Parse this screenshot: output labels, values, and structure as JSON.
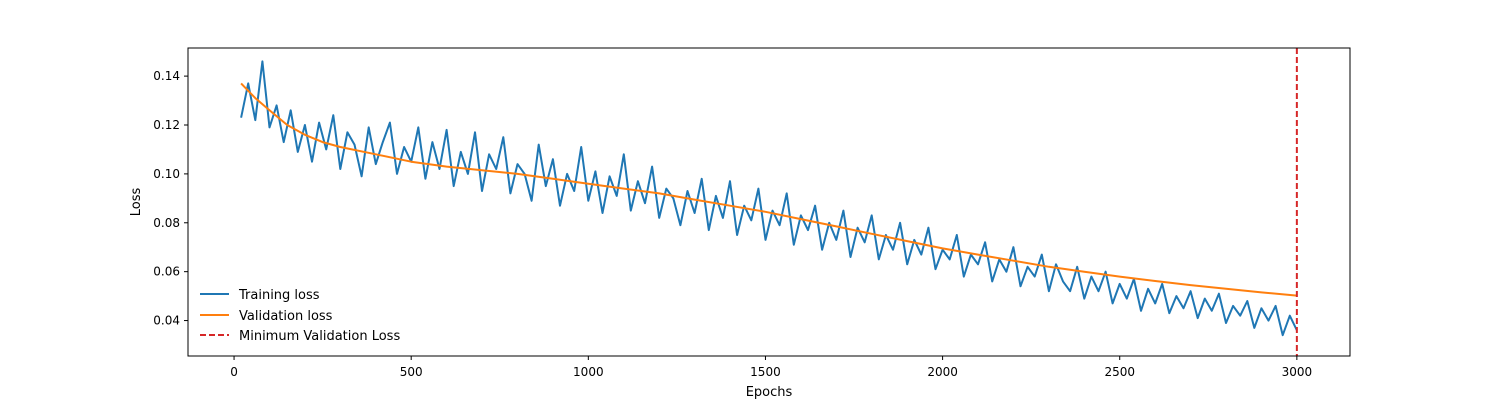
{
  "chart_data": {
    "type": "line",
    "title": "",
    "xlabel": "Epochs",
    "ylabel": "Loss",
    "xlim": [
      -130,
      3150
    ],
    "ylim": [
      0.0255,
      0.1515
    ],
    "x_ticks": [
      0,
      500,
      1000,
      1500,
      2000,
      2500,
      3000
    ],
    "y_ticks": [
      0.04,
      0.06,
      0.08,
      0.1,
      0.12,
      0.14
    ],
    "grid": false,
    "legend_position": "lower-left",
    "series": [
      {
        "name": "Training loss",
        "color": "#1f77b4",
        "style": "solid",
        "x": [
          20,
          40,
          60,
          80,
          100,
          120,
          140,
          160,
          180,
          200,
          220,
          240,
          260,
          280,
          300,
          320,
          340,
          360,
          380,
          400,
          420,
          440,
          460,
          480,
          500,
          520,
          540,
          560,
          580,
          600,
          620,
          640,
          660,
          680,
          700,
          720,
          740,
          760,
          780,
          800,
          820,
          840,
          860,
          880,
          900,
          920,
          940,
          960,
          980,
          1000,
          1020,
          1040,
          1060,
          1080,
          1100,
          1120,
          1140,
          1160,
          1180,
          1200,
          1220,
          1240,
          1260,
          1280,
          1300,
          1320,
          1340,
          1360,
          1380,
          1400,
          1420,
          1440,
          1460,
          1480,
          1500,
          1520,
          1540,
          1560,
          1580,
          1600,
          1620,
          1640,
          1660,
          1680,
          1700,
          1720,
          1740,
          1760,
          1780,
          1800,
          1820,
          1840,
          1860,
          1880,
          1900,
          1920,
          1940,
          1960,
          1980,
          2000,
          2020,
          2040,
          2060,
          2080,
          2100,
          2120,
          2140,
          2160,
          2180,
          2200,
          2220,
          2240,
          2260,
          2280,
          2300,
          2320,
          2340,
          2360,
          2380,
          2400,
          2420,
          2440,
          2460,
          2480,
          2500,
          2520,
          2540,
          2560,
          2580,
          2600,
          2620,
          2640,
          2660,
          2680,
          2700,
          2720,
          2740,
          2760,
          2780,
          2800,
          2820,
          2840,
          2860,
          2880,
          2900,
          2920,
          2940,
          2960,
          2980,
          3000
        ],
        "y": [
          0.123,
          0.137,
          0.122,
          0.146,
          0.119,
          0.128,
          0.113,
          0.126,
          0.109,
          0.12,
          0.105,
          0.121,
          0.11,
          0.124,
          0.102,
          0.117,
          0.112,
          0.099,
          0.119,
          0.104,
          0.113,
          0.121,
          0.1,
          0.111,
          0.105,
          0.119,
          0.098,
          0.113,
          0.102,
          0.118,
          0.095,
          0.109,
          0.1,
          0.117,
          0.093,
          0.108,
          0.102,
          0.115,
          0.092,
          0.104,
          0.1,
          0.089,
          0.112,
          0.095,
          0.106,
          0.087,
          0.1,
          0.093,
          0.111,
          0.089,
          0.101,
          0.084,
          0.099,
          0.091,
          0.108,
          0.085,
          0.097,
          0.088,
          0.103,
          0.082,
          0.094,
          0.09,
          0.079,
          0.093,
          0.084,
          0.098,
          0.077,
          0.091,
          0.082,
          0.097,
          0.075,
          0.087,
          0.081,
          0.094,
          0.073,
          0.085,
          0.079,
          0.092,
          0.071,
          0.083,
          0.077,
          0.087,
          0.069,
          0.08,
          0.073,
          0.085,
          0.066,
          0.078,
          0.072,
          0.083,
          0.065,
          0.075,
          0.069,
          0.08,
          0.063,
          0.073,
          0.067,
          0.078,
          0.061,
          0.069,
          0.065,
          0.075,
          0.058,
          0.067,
          0.063,
          0.072,
          0.056,
          0.065,
          0.06,
          0.07,
          0.054,
          0.062,
          0.058,
          0.067,
          0.052,
          0.063,
          0.056,
          0.052,
          0.062,
          0.049,
          0.058,
          0.052,
          0.06,
          0.047,
          0.055,
          0.049,
          0.057,
          0.044,
          0.053,
          0.047,
          0.055,
          0.043,
          0.05,
          0.045,
          0.052,
          0.041,
          0.049,
          0.044,
          0.051,
          0.039,
          0.046,
          0.042,
          0.048,
          0.037,
          0.045,
          0.04,
          0.046,
          0.034,
          0.042,
          0.036
        ]
      },
      {
        "name": "Validation loss",
        "color": "#ff7f0e",
        "style": "solid",
        "x": [
          20,
          60,
          100,
          150,
          200,
          250,
          300,
          400,
          500,
          600,
          700,
          800,
          900,
          1000,
          1100,
          1200,
          1300,
          1400,
          1500,
          1600,
          1700,
          1800,
          1900,
          2000,
          2100,
          2200,
          2300,
          2400,
          2500,
          2600,
          2700,
          2800,
          2900,
          3000
        ],
        "y": [
          0.137,
          0.131,
          0.126,
          0.12,
          0.116,
          0.113,
          0.111,
          0.108,
          0.105,
          0.103,
          0.1015,
          0.1,
          0.098,
          0.096,
          0.094,
          0.092,
          0.0895,
          0.087,
          0.0845,
          0.0815,
          0.0785,
          0.0755,
          0.0725,
          0.0695,
          0.067,
          0.0645,
          0.062,
          0.06,
          0.058,
          0.0562,
          0.0545,
          0.053,
          0.0515,
          0.0502
        ]
      }
    ],
    "vlines": [
      {
        "name": "Minimum Validation Loss",
        "x": 3000,
        "color": "#d62728",
        "style": "dashed"
      }
    ]
  }
}
